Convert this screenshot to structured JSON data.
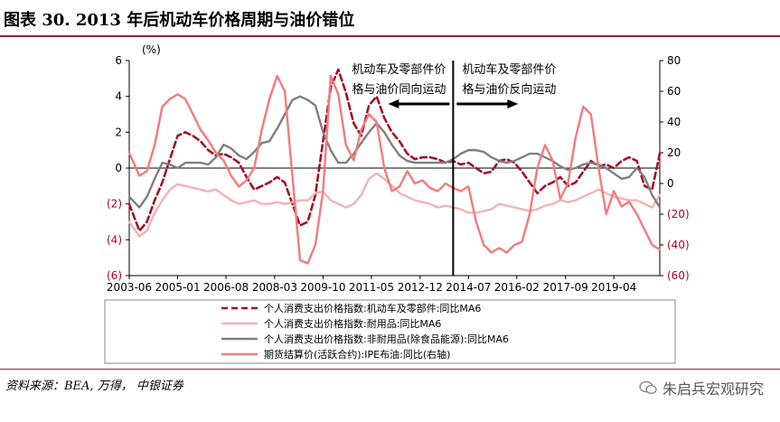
{
  "page": {
    "title": "图表 30. 2013 年后机动车价格周期与油价错位",
    "source": "资料来源：BEA, 万得， 中银证券",
    "brand": "朱启兵宏观研究"
  },
  "chart_data": {
    "type": "line",
    "left_axis": {
      "unit_label": "(%)",
      "range": [
        -6,
        6
      ],
      "tick_labels": [
        "6",
        "4",
        "2",
        "0",
        "(2)",
        "(4)",
        "(6)"
      ],
      "tick_values": [
        6,
        4,
        2,
        0,
        -2,
        -4,
        -6
      ]
    },
    "right_axis": {
      "range": [
        -60,
        80
      ],
      "tick_labels": [
        "80",
        "60",
        "40",
        "20",
        "0",
        "(20)",
        "(40)",
        "(60)"
      ],
      "tick_values": [
        80,
        60,
        40,
        20,
        0,
        -20,
        -40,
        -60
      ]
    },
    "x_axis": {
      "range": [
        2003.42,
        2020.75
      ],
      "tick_labels": [
        "2003-06",
        "2005-01",
        "2006-08",
        "2008-03",
        "2009-10",
        "2011-05",
        "2012-12",
        "2014-07",
        "2016-02",
        "2017-09",
        "2019-04"
      ],
      "tick_values": [
        2003.42,
        2005.0,
        2006.58,
        2008.17,
        2009.75,
        2011.33,
        2012.92,
        2014.5,
        2016.08,
        2017.67,
        2019.25
      ]
    },
    "divider_x": 2014.0,
    "annotations": [
      {
        "lines": [
          "机动车及零部件价",
          "格与油价同向运动"
        ],
        "arrow": "left"
      },
      {
        "lines": [
          "机动车及零部件价",
          "格与油价反向运动"
        ],
        "arrow": "right"
      }
    ],
    "series": [
      {
        "name": "个人消费支出价格指数:机动车及零部件:同比MA6",
        "axis": "left",
        "color": "#a0142a",
        "style": "dashed",
        "x": [
          2003.42,
          2003.75,
          2004.0,
          2004.25,
          2004.5,
          2004.75,
          2005.0,
          2005.25,
          2005.5,
          2005.75,
          2006.0,
          2006.25,
          2006.5,
          2006.75,
          2007.0,
          2007.25,
          2007.5,
          2007.75,
          2008.0,
          2008.25,
          2008.5,
          2008.75,
          2009.0,
          2009.25,
          2009.5,
          2009.75,
          2010.0,
          2010.25,
          2010.5,
          2010.75,
          2011.0,
          2011.25,
          2011.5,
          2011.75,
          2012.0,
          2012.25,
          2012.5,
          2012.75,
          2013.0,
          2013.25,
          2013.5,
          2013.75,
          2014.0,
          2014.25,
          2014.5,
          2014.75,
          2015.0,
          2015.25,
          2015.5,
          2015.75,
          2016.0,
          2016.25,
          2016.5,
          2016.75,
          2017.0,
          2017.25,
          2017.5,
          2017.75,
          2018.0,
          2018.25,
          2018.5,
          2018.75,
          2019.0,
          2019.25,
          2019.5,
          2019.75,
          2020.0,
          2020.25,
          2020.5,
          2020.75
        ],
        "values": [
          -2.0,
          -3.5,
          -3.0,
          -1.8,
          -0.8,
          0.5,
          1.8,
          2.0,
          1.8,
          1.5,
          1.0,
          0.7,
          0.8,
          0.6,
          0.3,
          -0.5,
          -1.2,
          -1.0,
          -0.8,
          -0.5,
          -0.8,
          -2.0,
          -3.2,
          -3.0,
          -1.5,
          1.5,
          4.5,
          5.5,
          4.2,
          2.5,
          1.8,
          3.5,
          4.0,
          2.8,
          2.0,
          1.5,
          0.8,
          0.5,
          0.6,
          0.6,
          0.5,
          0.3,
          0.4,
          0.2,
          0.3,
          0.0,
          -0.3,
          -0.2,
          0.4,
          0.5,
          0.3,
          -0.2,
          -0.8,
          -1.4,
          -1.0,
          -0.8,
          -0.5,
          -1.0,
          -0.8,
          -0.2,
          0.4,
          0.1,
          0.2,
          0.0,
          0.4,
          0.6,
          0.4,
          -1.0,
          -1.2,
          0.8
        ]
      },
      {
        "name": "个人消费支出价格指数:耐用品:同比MA6",
        "axis": "left",
        "color": "#f2b3b3",
        "style": "solid",
        "x": [
          2003.42,
          2003.75,
          2004.0,
          2004.25,
          2004.5,
          2004.75,
          2005.0,
          2005.25,
          2005.5,
          2005.75,
          2006.0,
          2006.25,
          2006.5,
          2006.75,
          2007.0,
          2007.25,
          2007.5,
          2007.75,
          2008.0,
          2008.25,
          2008.5,
          2008.75,
          2009.0,
          2009.25,
          2009.5,
          2009.75,
          2010.0,
          2010.25,
          2010.5,
          2010.75,
          2011.0,
          2011.25,
          2011.5,
          2011.75,
          2012.0,
          2012.25,
          2012.5,
          2012.75,
          2013.0,
          2013.25,
          2013.5,
          2013.75,
          2014.0,
          2014.25,
          2014.5,
          2014.75,
          2015.0,
          2015.25,
          2015.5,
          2015.75,
          2016.0,
          2016.25,
          2016.5,
          2016.75,
          2017.0,
          2017.25,
          2017.5,
          2017.75,
          2018.0,
          2018.25,
          2018.5,
          2018.75,
          2019.0,
          2019.25,
          2019.5,
          2019.75,
          2020.0,
          2020.25,
          2020.5,
          2020.75
        ],
        "values": [
          -3.0,
          -3.8,
          -3.5,
          -2.5,
          -1.8,
          -1.2,
          -0.9,
          -1.0,
          -1.1,
          -1.2,
          -1.3,
          -1.2,
          -1.5,
          -1.8,
          -2.0,
          -1.9,
          -1.8,
          -2.0,
          -2.0,
          -1.9,
          -2.0,
          -1.9,
          -1.8,
          -1.8,
          -1.4,
          -1.3,
          -1.8,
          -2.0,
          -2.2,
          -2.0,
          -1.5,
          -0.6,
          -0.3,
          -0.6,
          -1.0,
          -1.4,
          -1.6,
          -1.8,
          -1.9,
          -2.0,
          -2.2,
          -2.1,
          -2.2,
          -2.3,
          -2.5,
          -2.5,
          -2.4,
          -2.3,
          -2.0,
          -2.1,
          -2.2,
          -2.3,
          -2.4,
          -2.3,
          -2.1,
          -2.0,
          -1.8,
          -1.9,
          -1.8,
          -1.6,
          -1.4,
          -1.2,
          -1.4,
          -1.6,
          -1.7,
          -1.8,
          -1.8,
          -2.0,
          -2.2,
          -1.5
        ]
      },
      {
        "name": "个人消费支出价格指数:非耐用品(除食品能源):同比MA6",
        "axis": "left",
        "color": "#7f7f7f",
        "style": "solid",
        "x": [
          2003.42,
          2003.75,
          2004.0,
          2004.25,
          2004.5,
          2004.75,
          2005.0,
          2005.25,
          2005.5,
          2005.75,
          2006.0,
          2006.25,
          2006.5,
          2006.75,
          2007.0,
          2007.25,
          2007.5,
          2007.75,
          2008.0,
          2008.25,
          2008.5,
          2008.75,
          2009.0,
          2009.25,
          2009.5,
          2009.75,
          2010.0,
          2010.25,
          2010.5,
          2010.75,
          2011.0,
          2011.25,
          2011.5,
          2011.75,
          2012.0,
          2012.25,
          2012.5,
          2012.75,
          2013.0,
          2013.25,
          2013.5,
          2013.75,
          2014.0,
          2014.25,
          2014.5,
          2014.75,
          2015.0,
          2015.25,
          2015.5,
          2015.75,
          2016.0,
          2016.25,
          2016.5,
          2016.75,
          2017.0,
          2017.25,
          2017.5,
          2017.75,
          2018.0,
          2018.25,
          2018.5,
          2018.75,
          2019.0,
          2019.25,
          2019.5,
          2019.75,
          2020.0,
          2020.25,
          2020.5,
          2020.75
        ],
        "values": [
          -1.6,
          -2.2,
          -1.6,
          -0.6,
          0.3,
          0.2,
          0.0,
          0.3,
          0.3,
          0.3,
          0.2,
          0.6,
          1.3,
          1.1,
          0.7,
          0.5,
          0.9,
          1.4,
          1.5,
          2.2,
          3.0,
          3.8,
          4.0,
          3.8,
          3.5,
          2.0,
          1.0,
          0.3,
          0.3,
          0.8,
          1.4,
          2.0,
          2.5,
          2.0,
          1.3,
          0.7,
          0.4,
          0.3,
          0.3,
          0.3,
          0.3,
          0.3,
          0.5,
          0.8,
          1.0,
          1.0,
          0.9,
          0.6,
          0.4,
          0.3,
          0.4,
          0.6,
          0.8,
          0.8,
          0.6,
          0.4,
          0.1,
          -0.1,
          0.0,
          0.2,
          0.3,
          0.2,
          0.0,
          -0.3,
          -0.6,
          -0.5,
          0.0,
          -0.5,
          -1.5,
          -2.2
        ]
      },
      {
        "name": "期货结算价(活跃合约):IPE布油:同比(右轴)",
        "axis": "right",
        "color": "#f47a7a",
        "style": "solid",
        "x": [
          2003.42,
          2003.75,
          2004.0,
          2004.25,
          2004.5,
          2004.75,
          2005.0,
          2005.25,
          2005.5,
          2005.75,
          2006.0,
          2006.25,
          2006.5,
          2006.75,
          2007.0,
          2007.25,
          2007.5,
          2007.75,
          2008.0,
          2008.25,
          2008.5,
          2008.75,
          2009.0,
          2009.25,
          2009.5,
          2009.75,
          2010.0,
          2010.25,
          2010.5,
          2010.75,
          2011.0,
          2011.25,
          2011.5,
          2011.75,
          2012.0,
          2012.25,
          2012.5,
          2012.75,
          2013.0,
          2013.25,
          2013.5,
          2013.75,
          2014.0,
          2014.25,
          2014.5,
          2014.75,
          2015.0,
          2015.25,
          2015.5,
          2015.75,
          2016.0,
          2016.25,
          2016.5,
          2016.75,
          2017.0,
          2017.25,
          2017.5,
          2017.75,
          2018.0,
          2018.25,
          2018.5,
          2018.75,
          2019.0,
          2019.25,
          2019.5,
          2019.75,
          2020.0,
          2020.25,
          2020.5,
          2020.75
        ],
        "values": [
          20,
          5,
          8,
          25,
          50,
          55,
          58,
          55,
          45,
          35,
          28,
          20,
          15,
          5,
          -2,
          2,
          10,
          35,
          55,
          70,
          60,
          5,
          -50,
          -52,
          -40,
          -5,
          70,
          58,
          25,
          15,
          35,
          45,
          40,
          10,
          -5,
          -2,
          8,
          0,
          2,
          -3,
          -5,
          0,
          -3,
          -5,
          -2,
          -25,
          -40,
          -45,
          -42,
          -45,
          -40,
          -38,
          -20,
          10,
          25,
          15,
          -10,
          0,
          30,
          50,
          45,
          10,
          -20,
          -5,
          -15,
          -12,
          -20,
          -30,
          -40,
          -43
        ]
      }
    ]
  }
}
